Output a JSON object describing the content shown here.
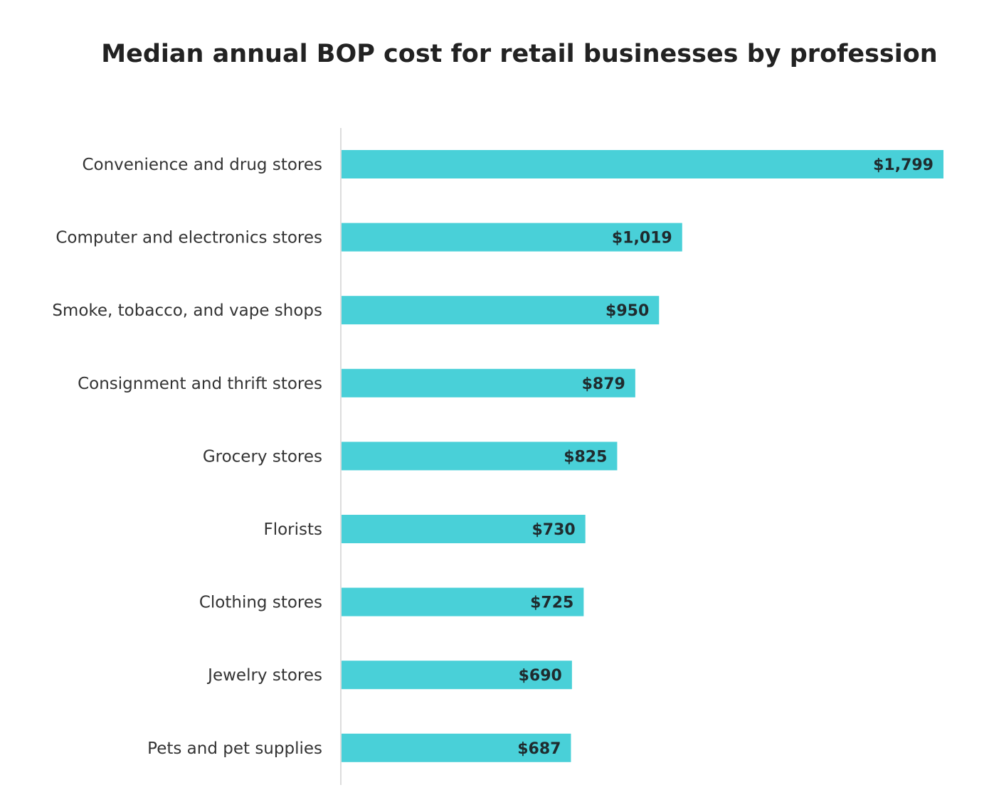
{
  "chart_data": {
    "type": "bar",
    "orientation": "horizontal",
    "title": "Median annual BOP cost for retail businesses by profession",
    "xlabel": "",
    "ylabel": "",
    "categories": [
      "Convenience and drug stores",
      "Computer and electronics stores",
      "Smoke, tobacco, and vape shops",
      "Consignment and thrift stores",
      "Grocery stores",
      "Florists",
      "Clothing stores",
      "Jewelry stores",
      "Pets and pet supplies"
    ],
    "values": [
      1799,
      1019,
      950,
      879,
      825,
      730,
      725,
      690,
      687
    ],
    "data_labels": [
      "$1,799",
      "$1,019",
      "$950",
      "$879",
      "$825",
      "$730",
      "$725",
      "$690",
      "$687"
    ],
    "xlim": [
      0,
      1799
    ],
    "grid": false,
    "legend": "none",
    "bar_color": "#49d0d8",
    "axis_color": "#dddddd"
  }
}
